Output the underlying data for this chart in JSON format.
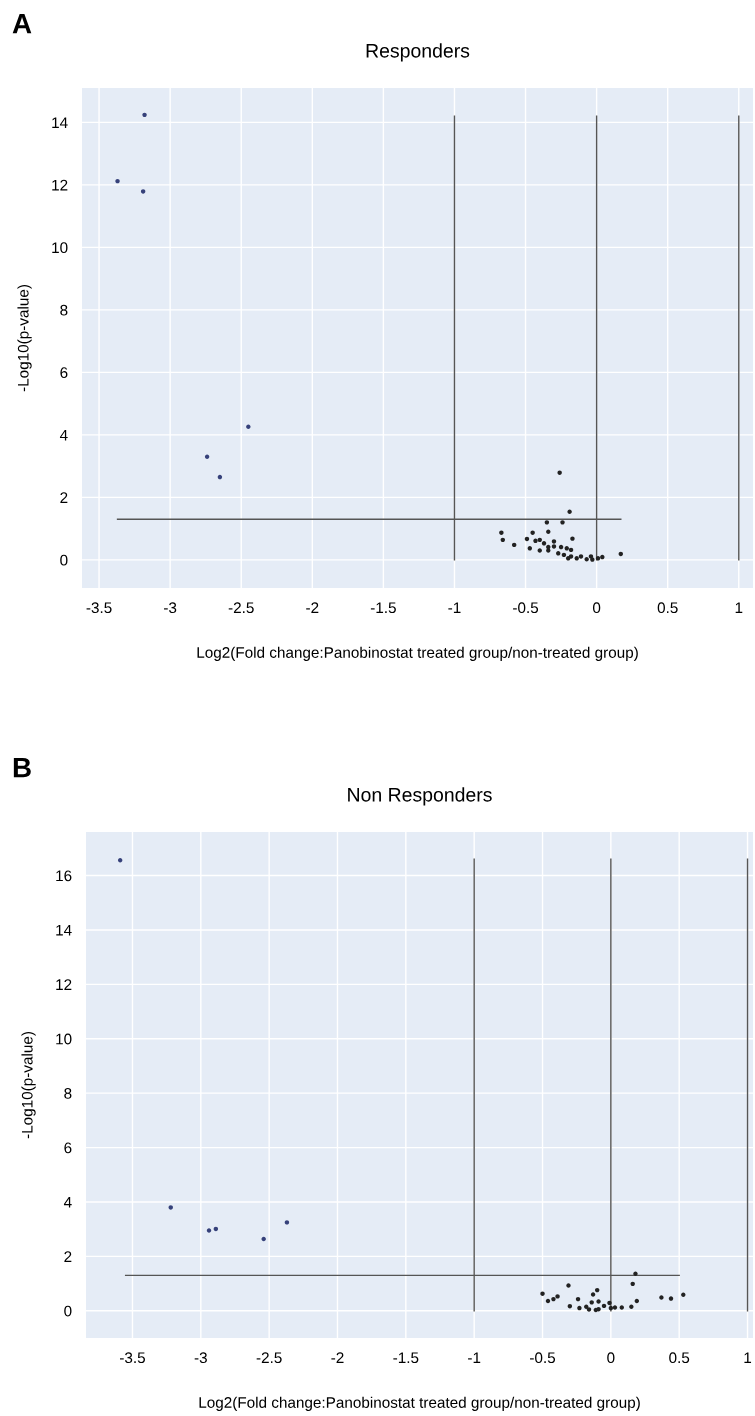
{
  "chart_data": [
    {
      "type": "scatter",
      "title": "Responders",
      "xlabel": "Log2(Fold change:Panobinostat treated group/non-treated group)",
      "ylabel": "-Log10(p-value)",
      "annotations": [
        "A"
      ],
      "xlim": [
        -3.62,
        1.1
      ],
      "ylim": [
        -0.9,
        15.1
      ],
      "xticks": [
        -3.5,
        -3,
        -2.5,
        -2,
        -1.5,
        -1,
        -0.5,
        0,
        0.5,
        1
      ],
      "yticks": [
        0,
        2,
        4,
        6,
        8,
        10,
        12,
        14
      ],
      "grid": true,
      "series": [
        {
          "marker": "circle",
          "color": "#36417a",
          "x": [
            -3.18,
            -3.37,
            -3.19,
            -2.45,
            -2.74,
            -2.65
          ],
          "values": [
            14.24,
            12.12,
            11.79,
            4.26,
            3.3,
            2.65
          ]
        },
        {
          "marker": "circle",
          "color": "#222222",
          "x": [
            -0.26,
            -0.19,
            -0.35,
            -0.24,
            -0.67,
            -0.45,
            -0.34,
            -0.66,
            -0.58,
            -0.49,
            -0.47,
            -0.17,
            -0.43,
            -0.4,
            -0.37,
            -0.4,
            -0.34,
            -0.3,
            -0.3,
            -0.25,
            -0.21,
            -0.27,
            -0.23,
            -0.18,
            -0.18,
            -0.14,
            -0.11,
            -0.07,
            -0.04,
            -0.03,
            0.01,
            0.04,
            0.17,
            -0.34,
            -0.2
          ],
          "values": [
            2.79,
            1.54,
            1.2,
            1.2,
            0.87,
            0.87,
            0.9,
            0.64,
            0.48,
            0.67,
            0.37,
            0.68,
            0.61,
            0.64,
            0.53,
            0.3,
            0.3,
            0.59,
            0.43,
            0.41,
            0.37,
            0.21,
            0.16,
            0.32,
            0.11,
            0.05,
            0.11,
            0.02,
            0.11,
            0.01,
            0.05,
            0.09,
            0.19,
            0.41,
            0.05
          ]
        },
        {
          "type": "line",
          "color": "#555555",
          "x": [
            -1,
            -1
          ],
          "values": [
            0,
            14.2
          ]
        },
        {
          "type": "line",
          "color": "#555555",
          "x": [
            0,
            0
          ],
          "values": [
            0,
            14.2
          ]
        },
        {
          "type": "line",
          "color": "#555555",
          "x": [
            1,
            1
          ],
          "values": [
            0,
            14.2
          ]
        },
        {
          "type": "line",
          "color": "#555555",
          "x": [
            -3.37,
            0.17
          ],
          "values": [
            1.3,
            1.3
          ]
        }
      ]
    },
    {
      "type": "scatter",
      "title": "Non Responders",
      "xlabel": "Log2(Fold change:Panobinostat treated group/non-treated group)",
      "ylabel": "-Log10(p-value)",
      "annotations": [
        "B"
      ],
      "xlim": [
        -3.84,
        1.04
      ],
      "ylim": [
        -1.0,
        17.6
      ],
      "xticks": [
        -3.5,
        -3,
        -2.5,
        -2,
        -1.5,
        -1,
        -0.5,
        0,
        0.5,
        1
      ],
      "yticks": [
        0,
        2,
        4,
        6,
        8,
        10,
        12,
        14,
        16
      ],
      "grid": true,
      "series": [
        {
          "marker": "circle",
          "color": "#36417a",
          "x": [
            -3.59,
            -3.22,
            -2.94,
            -2.89,
            -2.54,
            -2.37
          ],
          "values": [
            16.56,
            3.8,
            2.95,
            3.01,
            2.64,
            3.25
          ]
        },
        {
          "marker": "circle",
          "color": "#222222",
          "x": [
            0.18,
            0.16,
            -0.31,
            -0.5,
            -0.46,
            -0.42,
            -0.39,
            -0.1,
            -0.13,
            -0.24,
            -0.3,
            -0.23,
            -0.18,
            -0.14,
            -0.09,
            -0.09,
            -0.05,
            -0.01,
            0.0,
            0.03,
            0.08,
            0.15,
            0.19,
            0.37,
            0.44,
            0.53,
            -0.16,
            -0.11
          ],
          "values": [
            1.36,
            0.99,
            0.93,
            0.63,
            0.36,
            0.43,
            0.53,
            0.76,
            0.6,
            0.43,
            0.17,
            0.1,
            0.15,
            0.31,
            0.34,
            0.06,
            0.18,
            0.29,
            0.1,
            0.12,
            0.12,
            0.15,
            0.36,
            0.49,
            0.45,
            0.59,
            0.05,
            0.03
          ]
        },
        {
          "type": "line",
          "color": "#555555",
          "x": [
            -1,
            -1
          ],
          "values": [
            0,
            16.6
          ]
        },
        {
          "type": "line",
          "color": "#555555",
          "x": [
            0,
            0
          ],
          "values": [
            0,
            16.6
          ]
        },
        {
          "type": "line",
          "color": "#555555",
          "x": [
            1,
            1
          ],
          "values": [
            0,
            16.6
          ]
        },
        {
          "type": "line",
          "color": "#555555",
          "x": [
            -3.55,
            0.5
          ],
          "values": [
            1.3,
            1.3
          ]
        }
      ]
    }
  ]
}
